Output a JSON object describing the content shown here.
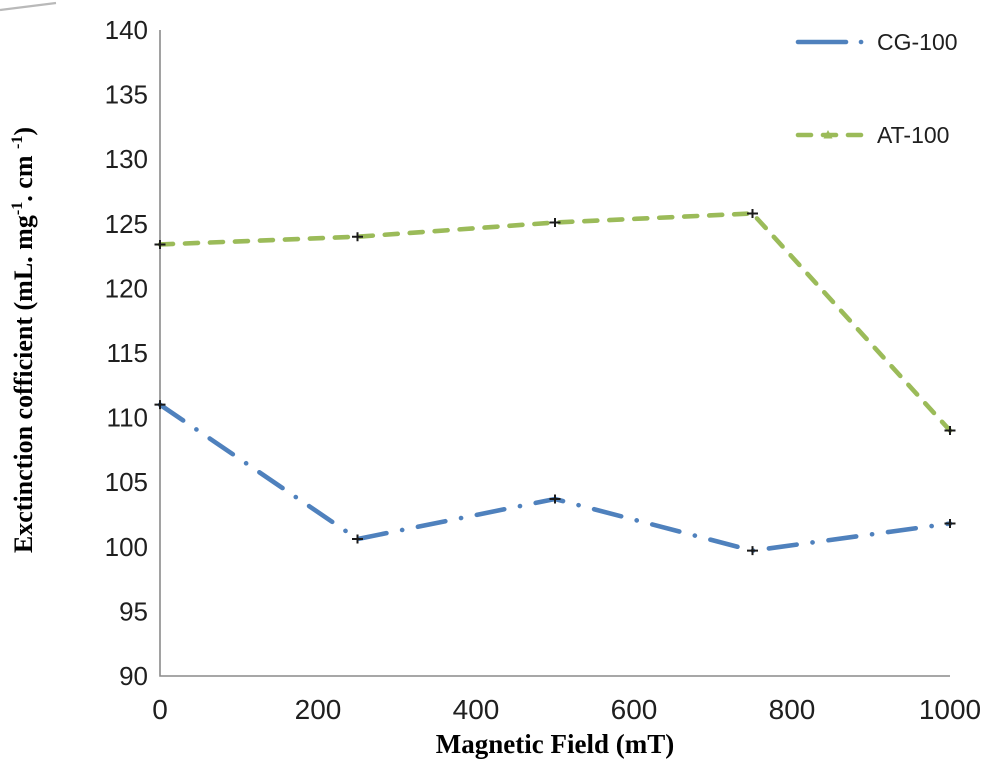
{
  "figure": {
    "background_color": "#ffffff"
  },
  "chart_data": {
    "type": "line",
    "x": [
      0,
      250,
      500,
      750,
      1000
    ],
    "series": [
      {
        "name": "CG-100",
        "color": "#4F81BD",
        "line_style": "long-dash-dot",
        "legend_marker": "dot",
        "values": [
          111.0,
          100.6,
          103.7,
          99.7,
          101.8
        ]
      },
      {
        "name": "AT-100",
        "color": "#9BBB59",
        "line_style": "dash",
        "legend_marker": "triangle",
        "values": [
          123.4,
          124.0,
          125.1,
          125.8,
          109.0
        ]
      }
    ],
    "error_bars": true,
    "error_bar_color": "#1a1a1a",
    "title": "",
    "xlabel": "Magnetic Field (mT)",
    "ylabel": "Exctinction cofficient (mL. mg-1. cm -1)",
    "ylabel_parts": [
      {
        "t": "Exctinction cofficient (mL. mg"
      },
      {
        "sup": "-1"
      },
      {
        "t": ". cm "
      },
      {
        "sup": "-1"
      },
      {
        "t": ")"
      }
    ],
    "xlim": [
      0,
      1000
    ],
    "ylim": [
      90,
      140
    ],
    "xticks": [
      0,
      200,
      400,
      600,
      800,
      1000
    ],
    "yticks": [
      90,
      95,
      100,
      105,
      110,
      115,
      120,
      125,
      130,
      135,
      140
    ],
    "grid": false,
    "legend_position": "top-right",
    "axis_color": "#8a8a8a",
    "tick_label_color": "#1f1f1f"
  }
}
